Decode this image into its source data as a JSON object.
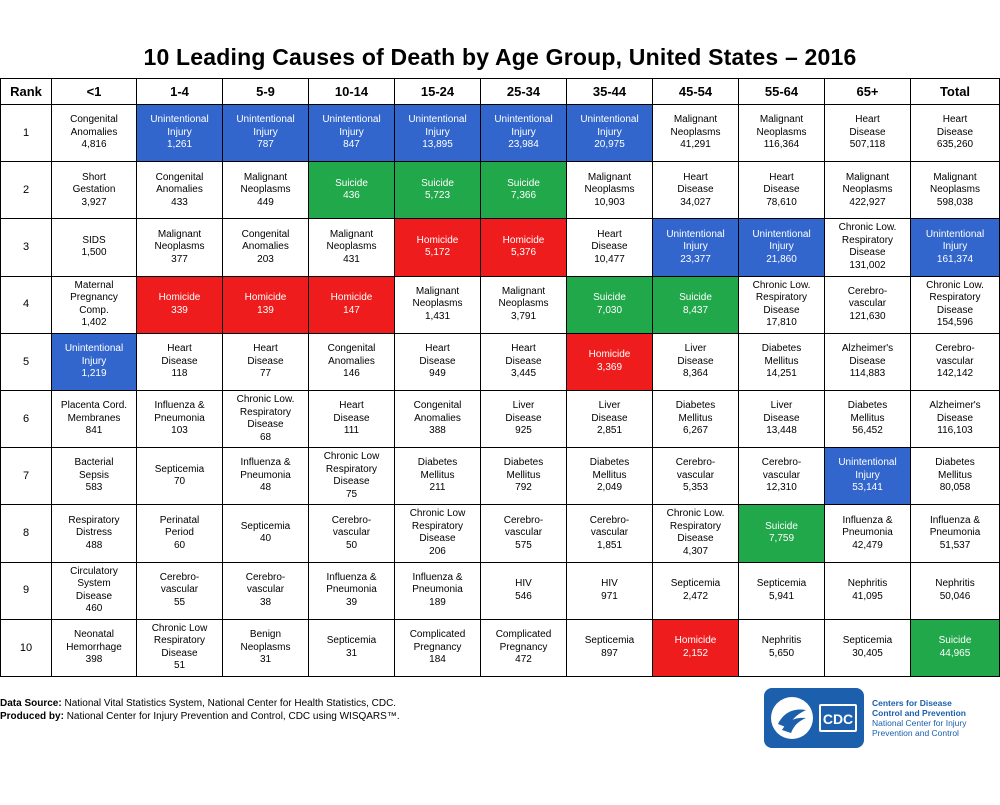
{
  "chart_data": {
    "type": "table",
    "title": "10 Leading Causes of Death by Age Group, United States – 2016",
    "columns": [
      "Rank",
      "<1",
      "1-4",
      "5-9",
      "10-14",
      "15-24",
      "25-34",
      "35-44",
      "45-54",
      "55-64",
      "65+",
      "Total"
    ],
    "rows": [
      {
        "rank": "1",
        "cells": [
          {
            "name": "Congenital\nAnomalies",
            "value": "4,816",
            "cat": ""
          },
          {
            "name": "Unintentional\nInjury",
            "value": "1,261",
            "cat": "injury"
          },
          {
            "name": "Unintentional\nInjury",
            "value": "787",
            "cat": "injury"
          },
          {
            "name": "Unintentional\nInjury",
            "value": "847",
            "cat": "injury"
          },
          {
            "name": "Unintentional\nInjury",
            "value": "13,895",
            "cat": "injury"
          },
          {
            "name": "Unintentional\nInjury",
            "value": "23,984",
            "cat": "injury"
          },
          {
            "name": "Unintentional\nInjury",
            "value": "20,975",
            "cat": "injury"
          },
          {
            "name": "Malignant\nNeoplasms",
            "value": "41,291",
            "cat": ""
          },
          {
            "name": "Malignant\nNeoplasms",
            "value": "116,364",
            "cat": ""
          },
          {
            "name": "Heart\nDisease",
            "value": "507,118",
            "cat": ""
          },
          {
            "name": "Heart\nDisease",
            "value": "635,260",
            "cat": ""
          }
        ]
      },
      {
        "rank": "2",
        "cells": [
          {
            "name": "Short\nGestation",
            "value": "3,927",
            "cat": ""
          },
          {
            "name": "Congenital\nAnomalies",
            "value": "433",
            "cat": ""
          },
          {
            "name": "Malignant\nNeoplasms",
            "value": "449",
            "cat": ""
          },
          {
            "name": "Suicide",
            "value": "436",
            "cat": "suicide"
          },
          {
            "name": "Suicide",
            "value": "5,723",
            "cat": "suicide"
          },
          {
            "name": "Suicide",
            "value": "7,366",
            "cat": "suicide"
          },
          {
            "name": "Malignant\nNeoplasms",
            "value": "10,903",
            "cat": ""
          },
          {
            "name": "Heart\nDisease",
            "value": "34,027",
            "cat": ""
          },
          {
            "name": "Heart\nDisease",
            "value": "78,610",
            "cat": ""
          },
          {
            "name": "Malignant\nNeoplasms",
            "value": "422,927",
            "cat": ""
          },
          {
            "name": "Malignant\nNeoplasms",
            "value": "598,038",
            "cat": ""
          }
        ]
      },
      {
        "rank": "3",
        "cells": [
          {
            "name": "SIDS",
            "value": "1,500",
            "cat": ""
          },
          {
            "name": "Malignant\nNeoplasms",
            "value": "377",
            "cat": ""
          },
          {
            "name": "Congenital\nAnomalies",
            "value": "203",
            "cat": ""
          },
          {
            "name": "Malignant\nNeoplasms",
            "value": "431",
            "cat": ""
          },
          {
            "name": "Homicide",
            "value": "5,172",
            "cat": "homicide"
          },
          {
            "name": "Homicide",
            "value": "5,376",
            "cat": "homicide"
          },
          {
            "name": "Heart\nDisease",
            "value": "10,477",
            "cat": ""
          },
          {
            "name": "Unintentional\nInjury",
            "value": "23,377",
            "cat": "injury"
          },
          {
            "name": "Unintentional\nInjury",
            "value": "21,860",
            "cat": "injury"
          },
          {
            "name": "Chronic Low.\nRespiratory\nDisease",
            "value": "131,002",
            "cat": ""
          },
          {
            "name": "Unintentional\nInjury",
            "value": "161,374",
            "cat": "injury"
          }
        ]
      },
      {
        "rank": "4",
        "cells": [
          {
            "name": "Maternal\nPregnancy\nComp.",
            "value": "1,402",
            "cat": ""
          },
          {
            "name": "Homicide",
            "value": "339",
            "cat": "homicide"
          },
          {
            "name": "Homicide",
            "value": "139",
            "cat": "homicide"
          },
          {
            "name": "Homicide",
            "value": "147",
            "cat": "homicide"
          },
          {
            "name": "Malignant\nNeoplasms",
            "value": "1,431",
            "cat": ""
          },
          {
            "name": "Malignant\nNeoplasms",
            "value": "3,791",
            "cat": ""
          },
          {
            "name": "Suicide",
            "value": "7,030",
            "cat": "suicide"
          },
          {
            "name": "Suicide",
            "value": "8,437",
            "cat": "suicide"
          },
          {
            "name": "Chronic Low.\nRespiratory\nDisease",
            "value": "17,810",
            "cat": ""
          },
          {
            "name": "Cerebro-\nvascular",
            "value": "121,630",
            "cat": ""
          },
          {
            "name": "Chronic Low.\nRespiratory\nDisease",
            "value": "154,596",
            "cat": ""
          }
        ]
      },
      {
        "rank": "5",
        "cells": [
          {
            "name": "Unintentional\nInjury",
            "value": "1,219",
            "cat": "injury"
          },
          {
            "name": "Heart\nDisease",
            "value": "118",
            "cat": ""
          },
          {
            "name": "Heart\nDisease",
            "value": "77",
            "cat": ""
          },
          {
            "name": "Congenital\nAnomalies",
            "value": "146",
            "cat": ""
          },
          {
            "name": "Heart\nDisease",
            "value": "949",
            "cat": ""
          },
          {
            "name": "Heart\nDisease",
            "value": "3,445",
            "cat": ""
          },
          {
            "name": "Homicide",
            "value": "3,369",
            "cat": "homicide"
          },
          {
            "name": "Liver\nDisease",
            "value": "8,364",
            "cat": ""
          },
          {
            "name": "Diabetes\nMellitus",
            "value": "14,251",
            "cat": ""
          },
          {
            "name": "Alzheimer's\nDisease",
            "value": "114,883",
            "cat": ""
          },
          {
            "name": "Cerebro-\nvascular",
            "value": "142,142",
            "cat": ""
          }
        ]
      },
      {
        "rank": "6",
        "cells": [
          {
            "name": "Placenta Cord.\nMembranes",
            "value": "841",
            "cat": ""
          },
          {
            "name": "Influenza &\nPneumonia",
            "value": "103",
            "cat": ""
          },
          {
            "name": "Chronic Low.\nRespiratory\nDisease",
            "value": "68",
            "cat": ""
          },
          {
            "name": "Heart\nDisease",
            "value": "111",
            "cat": ""
          },
          {
            "name": "Congenital\nAnomalies",
            "value": "388",
            "cat": ""
          },
          {
            "name": "Liver\nDisease",
            "value": "925",
            "cat": ""
          },
          {
            "name": "Liver\nDisease",
            "value": "2,851",
            "cat": ""
          },
          {
            "name": "Diabetes\nMellitus",
            "value": "6,267",
            "cat": ""
          },
          {
            "name": "Liver\nDisease",
            "value": "13,448",
            "cat": ""
          },
          {
            "name": "Diabetes\nMellitus",
            "value": "56,452",
            "cat": ""
          },
          {
            "name": "Alzheimer's\nDisease",
            "value": "116,103",
            "cat": ""
          }
        ]
      },
      {
        "rank": "7",
        "cells": [
          {
            "name": "Bacterial\nSepsis",
            "value": "583",
            "cat": ""
          },
          {
            "name": "Septicemia",
            "value": "70",
            "cat": ""
          },
          {
            "name": "Influenza &\nPneumonia",
            "value": "48",
            "cat": ""
          },
          {
            "name": "Chronic Low\nRespiratory\nDisease",
            "value": "75",
            "cat": ""
          },
          {
            "name": "Diabetes\nMellitus",
            "value": "211",
            "cat": ""
          },
          {
            "name": "Diabetes\nMellitus",
            "value": "792",
            "cat": ""
          },
          {
            "name": "Diabetes\nMellitus",
            "value": "2,049",
            "cat": ""
          },
          {
            "name": "Cerebro-\nvascular",
            "value": "5,353",
            "cat": ""
          },
          {
            "name": "Cerebro-\nvascular",
            "value": "12,310",
            "cat": ""
          },
          {
            "name": "Unintentional\nInjury",
            "value": "53,141",
            "cat": "injury"
          },
          {
            "name": "Diabetes\nMellitus",
            "value": "80,058",
            "cat": ""
          }
        ]
      },
      {
        "rank": "8",
        "cells": [
          {
            "name": "Respiratory\nDistress",
            "value": "488",
            "cat": ""
          },
          {
            "name": "Perinatal\nPeriod",
            "value": "60",
            "cat": ""
          },
          {
            "name": "Septicemia",
            "value": "40",
            "cat": ""
          },
          {
            "name": "Cerebro-\nvascular",
            "value": "50",
            "cat": ""
          },
          {
            "name": "Chronic Low\nRespiratory\nDisease",
            "value": "206",
            "cat": ""
          },
          {
            "name": "Cerebro-\nvascular",
            "value": "575",
            "cat": ""
          },
          {
            "name": "Cerebro-\nvascular",
            "value": "1,851",
            "cat": ""
          },
          {
            "name": "Chronic Low.\nRespiratory\nDisease",
            "value": "4,307",
            "cat": ""
          },
          {
            "name": "Suicide",
            "value": "7,759",
            "cat": "suicide"
          },
          {
            "name": "Influenza &\nPneumonia",
            "value": "42,479",
            "cat": ""
          },
          {
            "name": "Influenza &\nPneumonia",
            "value": "51,537",
            "cat": ""
          }
        ]
      },
      {
        "rank": "9",
        "cells": [
          {
            "name": "Circulatory\nSystem\nDisease",
            "value": "460",
            "cat": ""
          },
          {
            "name": "Cerebro-\nvascular",
            "value": "55",
            "cat": ""
          },
          {
            "name": "Cerebro-\nvascular",
            "value": "38",
            "cat": ""
          },
          {
            "name": "Influenza &\nPneumonia",
            "value": "39",
            "cat": ""
          },
          {
            "name": "Influenza &\nPneumonia",
            "value": "189",
            "cat": ""
          },
          {
            "name": "HIV",
            "value": "546",
            "cat": ""
          },
          {
            "name": "HIV",
            "value": "971",
            "cat": ""
          },
          {
            "name": "Septicemia",
            "value": "2,472",
            "cat": ""
          },
          {
            "name": "Septicemia",
            "value": "5,941",
            "cat": ""
          },
          {
            "name": "Nephritis",
            "value": "41,095",
            "cat": ""
          },
          {
            "name": "Nephritis",
            "value": "50,046",
            "cat": ""
          }
        ]
      },
      {
        "rank": "10",
        "cells": [
          {
            "name": "Neonatal\nHemorrhage",
            "value": "398",
            "cat": ""
          },
          {
            "name": "Chronic Low\nRespiratory\nDisease",
            "value": "51",
            "cat": ""
          },
          {
            "name": "Benign\nNeoplasms",
            "value": "31",
            "cat": ""
          },
          {
            "name": "Septicemia",
            "value": "31",
            "cat": ""
          },
          {
            "name": "Complicated\nPregnancy",
            "value": "184",
            "cat": ""
          },
          {
            "name": "Complicated\nPregnancy",
            "value": "472",
            "cat": ""
          },
          {
            "name": "Septicemia",
            "value": "897",
            "cat": ""
          },
          {
            "name": "Homicide",
            "value": "2,152",
            "cat": "homicide"
          },
          {
            "name": "Nephritis",
            "value": "5,650",
            "cat": ""
          },
          {
            "name": "Septicemia",
            "value": "30,405",
            "cat": ""
          },
          {
            "name": "Suicide",
            "value": "44,965",
            "cat": "suicide"
          }
        ]
      }
    ]
  },
  "colors": {
    "injury": "#3366cc",
    "suicide": "#21a84a",
    "homicide": "#ee1c1c"
  },
  "footer": {
    "source_label": "Data Source:",
    "source_text": "National Vital Statistics System, National Center for Health Statistics, CDC.",
    "produced_label": "Produced by:",
    "produced_text": "National Center for Injury Prevention and Control, CDC using WISQARS™."
  },
  "logo": {
    "badge_text": "CDC",
    "line1": "Centers for Disease",
    "line2": "Control and Prevention",
    "line3": "National Center for Injury",
    "line4": "Prevention and Control",
    "icon": "hhs-eagle-icon"
  }
}
